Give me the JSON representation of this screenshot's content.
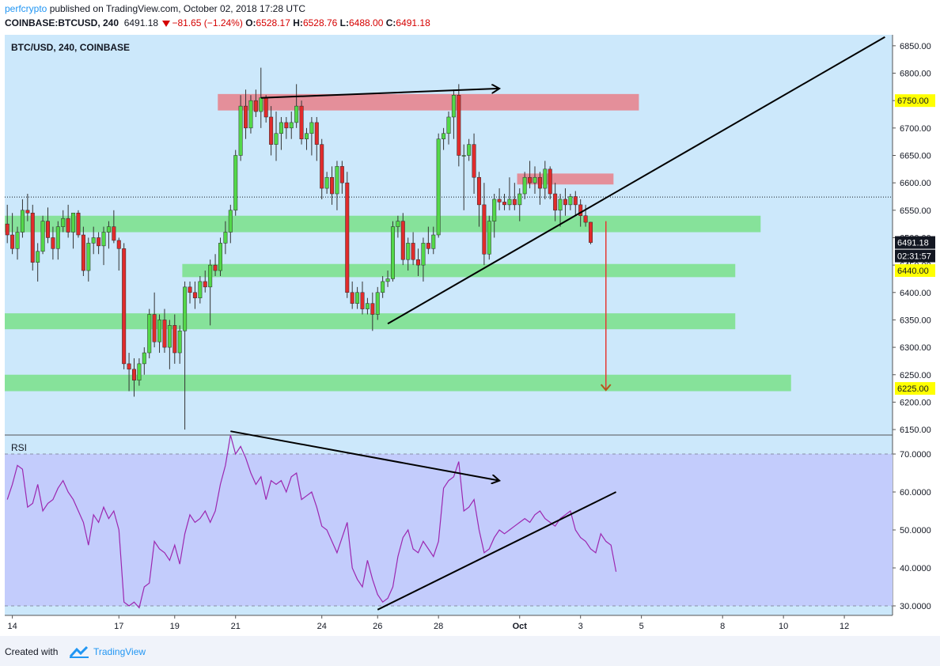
{
  "header": {
    "author": "perfcrypto",
    "published_text": "published on TradingView.com, October 02, 2018 17:28 UTC",
    "symbol": "COINBASE:BTCUSD, 240",
    "last": "6491.18",
    "change": "−81.65 (−1.24%)",
    "open_label": "O:",
    "open": "6528.17",
    "high_label": "H:",
    "high": "6528.76",
    "low_label": "L:",
    "low": "6488.00",
    "close_label": "C:",
    "close": "6491.18"
  },
  "footer": {
    "created_with": "Created with",
    "brand": "TradingView"
  },
  "colors": {
    "background": "#cce8fb",
    "up_candle": "#53d849",
    "down_candle": "#e12b2b",
    "support_zone": "#7ee18f",
    "resistance_zone": "#e7858f",
    "rsi_line": "#9c27b0",
    "rsi_band": "#c3ccfc",
    "target_arrow": "#e53935",
    "trendline": "#000000",
    "price_tag_yellow": "#ffff00"
  },
  "chart_data": [
    {
      "type": "candlestick",
      "title": "BTC/USD, 240, COINBASE",
      "ylim": [
        6140,
        6870
      ],
      "y_ticks": [
        6150,
        6200,
        6250,
        6300,
        6350,
        6400,
        6450,
        6500,
        6550,
        6600,
        6650,
        6700,
        6750,
        6800,
        6850
      ],
      "y_tick_labels": [
        "6150.00",
        "6200.00",
        "6250.00",
        "6300.00",
        "6350.00",
        "6400.00",
        "6450.00",
        "6500.00",
        "6550.00",
        "6600.00",
        "6650.00",
        "6700.00",
        "6750.00",
        "6800.00",
        "6850.00"
      ],
      "x_tick_labels": [
        "14",
        "17",
        "19",
        "21",
        "24",
        "26",
        "28",
        "Oct",
        "3",
        "5",
        "8",
        "10",
        "12"
      ],
      "x_tick_bars": [
        1,
        22,
        33,
        45,
        62,
        73,
        85,
        101,
        113,
        125,
        141,
        153,
        165
      ],
      "n_bars_visible": 175,
      "ohlc": [
        [
          6525,
          6560,
          6490,
          6505
        ],
        [
          6505,
          6545,
          6470,
          6480
        ],
        [
          6480,
          6520,
          6460,
          6510
        ],
        [
          6510,
          6570,
          6500,
          6550
        ],
        [
          6550,
          6580,
          6530,
          6545
        ],
        [
          6545,
          6560,
          6440,
          6455
        ],
        [
          6455,
          6490,
          6420,
          6475
        ],
        [
          6475,
          6540,
          6470,
          6530
        ],
        [
          6530,
          6555,
          6490,
          6500
        ],
        [
          6500,
          6520,
          6460,
          6480
        ],
        [
          6480,
          6530,
          6460,
          6520
        ],
        [
          6520,
          6550,
          6510,
          6535
        ],
        [
          6535,
          6560,
          6500,
          6510
        ],
        [
          6510,
          6540,
          6480,
          6545
        ],
        [
          6545,
          6550,
          6500,
          6505
        ],
        [
          6505,
          6520,
          6430,
          6440
        ],
        [
          6440,
          6500,
          6420,
          6490
        ],
        [
          6490,
          6520,
          6470,
          6500
        ],
        [
          6500,
          6510,
          6470,
          6485
        ],
        [
          6485,
          6520,
          6450,
          6510
        ],
        [
          6510,
          6530,
          6480,
          6520
        ],
        [
          6520,
          6550,
          6490,
          6495
        ],
        [
          6495,
          6500,
          6440,
          6480
        ],
        [
          6480,
          6490,
          6260,
          6270
        ],
        [
          6270,
          6290,
          6220,
          6260
        ],
        [
          6260,
          6280,
          6210,
          6240
        ],
        [
          6240,
          6280,
          6230,
          6270
        ],
        [
          6270,
          6300,
          6250,
          6290
        ],
        [
          6290,
          6370,
          6280,
          6360
        ],
        [
          6360,
          6400,
          6300,
          6310
        ],
        [
          6310,
          6360,
          6290,
          6350
        ],
        [
          6350,
          6370,
          6290,
          6300
        ],
        [
          6300,
          6350,
          6260,
          6340
        ],
        [
          6340,
          6360,
          6270,
          6290
        ],
        [
          6290,
          6340,
          6270,
          6330
        ],
        [
          6330,
          6420,
          6150,
          6410
        ],
        [
          6410,
          6420,
          6380,
          6400
        ],
        [
          6400,
          6420,
          6370,
          6390
        ],
        [
          6390,
          6430,
          6380,
          6420
        ],
        [
          6420,
          6440,
          6400,
          6410
        ],
        [
          6410,
          6460,
          6340,
          6450
        ],
        [
          6450,
          6470,
          6430,
          6440
        ],
        [
          6440,
          6500,
          6430,
          6490
        ],
        [
          6490,
          6530,
          6470,
          6510
        ],
        [
          6510,
          6560,
          6490,
          6550
        ],
        [
          6550,
          6660,
          6540,
          6650
        ],
        [
          6650,
          6760,
          6640,
          6740
        ],
        [
          6740,
          6770,
          6680,
          6700
        ],
        [
          6700,
          6760,
          6690,
          6750
        ],
        [
          6750,
          6770,
          6720,
          6730
        ],
        [
          6730,
          6810,
          6700,
          6755
        ],
        [
          6755,
          6760,
          6710,
          6720
        ],
        [
          6720,
          6740,
          6650,
          6670
        ],
        [
          6670,
          6730,
          6640,
          6690
        ],
        [
          6690,
          6720,
          6660,
          6710
        ],
        [
          6710,
          6720,
          6680,
          6700
        ],
        [
          6700,
          6730,
          6680,
          6710
        ],
        [
          6710,
          6780,
          6700,
          6740
        ],
        [
          6740,
          6750,
          6670,
          6680
        ],
        [
          6680,
          6700,
          6660,
          6690
        ],
        [
          6690,
          6720,
          6650,
          6710
        ],
        [
          6710,
          6720,
          6640,
          6670
        ],
        [
          6670,
          6680,
          6570,
          6590
        ],
        [
          6590,
          6620,
          6580,
          6610
        ],
        [
          6610,
          6630,
          6560,
          6580
        ],
        [
          6580,
          6640,
          6550,
          6630
        ],
        [
          6630,
          6640,
          6580,
          6600
        ],
        [
          6600,
          6620,
          6390,
          6400
        ],
        [
          6400,
          6420,
          6370,
          6380
        ],
        [
          6380,
          6410,
          6370,
          6400
        ],
        [
          6400,
          6420,
          6360,
          6370
        ],
        [
          6370,
          6390,
          6360,
          6380
        ],
        [
          6380,
          6400,
          6330,
          6360
        ],
        [
          6360,
          6410,
          6350,
          6400
        ],
        [
          6400,
          6430,
          6390,
          6420
        ],
        [
          6420,
          6440,
          6410,
          6425
        ],
        [
          6425,
          6530,
          6420,
          6520
        ],
        [
          6520,
          6540,
          6500,
          6530
        ],
        [
          6530,
          6545,
          6450,
          6460
        ],
        [
          6460,
          6500,
          6440,
          6490
        ],
        [
          6490,
          6510,
          6450,
          6460
        ],
        [
          6460,
          6480,
          6430,
          6450
        ],
        [
          6450,
          6500,
          6420,
          6490
        ],
        [
          6490,
          6520,
          6470,
          6480
        ],
        [
          6480,
          6520,
          6470,
          6505
        ],
        [
          6505,
          6690,
          6500,
          6680
        ],
        [
          6680,
          6700,
          6660,
          6690
        ],
        [
          6690,
          6730,
          6670,
          6720
        ],
        [
          6720,
          6770,
          6680,
          6760
        ],
        [
          6760,
          6780,
          6630,
          6650
        ],
        [
          6650,
          6670,
          6550,
          6650
        ],
        [
          6650,
          6680,
          6640,
          6670
        ],
        [
          6670,
          6690,
          6580,
          6610
        ],
        [
          6610,
          6620,
          6520,
          6560
        ],
        [
          6560,
          6600,
          6450,
          6470
        ],
        [
          6470,
          6540,
          6460,
          6530
        ],
        [
          6530,
          6580,
          6500,
          6570
        ],
        [
          6570,
          6590,
          6550,
          6565
        ],
        [
          6565,
          6580,
          6550,
          6560
        ],
        [
          6560,
          6610,
          6550,
          6570
        ],
        [
          6570,
          6600,
          6550,
          6560
        ],
        [
          6560,
          6590,
          6530,
          6580
        ],
        [
          6580,
          6620,
          6570,
          6610
        ],
        [
          6610,
          6640,
          6590,
          6600
        ],
        [
          6600,
          6630,
          6580,
          6610
        ],
        [
          6610,
          6620,
          6560,
          6590
        ],
        [
          6590,
          6640,
          6570,
          6625
        ],
        [
          6625,
          6630,
          6570,
          6580
        ],
        [
          6580,
          6600,
          6530,
          6550
        ],
        [
          6550,
          6580,
          6520,
          6570
        ],
        [
          6570,
          6590,
          6540,
          6560
        ],
        [
          6560,
          6580,
          6550,
          6575
        ],
        [
          6575,
          6585,
          6540,
          6560
        ],
        [
          6560,
          6570,
          6520,
          6540
        ],
        [
          6540,
          6560,
          6520,
          6528
        ],
        [
          6528.17,
          6528.76,
          6488,
          6491.18
        ]
      ],
      "zones": [
        {
          "kind": "resistance",
          "low": 6732,
          "high": 6762,
          "start_bar": 42,
          "end_bar": 125
        },
        {
          "kind": "resistance",
          "low": 6597,
          "high": 6617,
          "start_bar": 101,
          "end_bar": 120
        },
        {
          "kind": "support",
          "low": 6510,
          "high": 6540,
          "start_bar": 0,
          "end_bar": 149
        },
        {
          "kind": "support",
          "low": 6428,
          "high": 6452,
          "start_bar": 35,
          "end_bar": 144
        },
        {
          "kind": "support",
          "low": 6333,
          "high": 6362,
          "start_bar": 0,
          "end_bar": 144
        },
        {
          "kind": "support",
          "low": 6220,
          "high": 6250,
          "start_bar": 0,
          "end_bar": 155
        }
      ],
      "price_labels": [
        {
          "value": 6750,
          "text": "6750.00",
          "style": "yellow"
        },
        {
          "value": 6491.18,
          "text": "6491.18",
          "style": "dark"
        },
        {
          "value": 6440,
          "text": "6440.00",
          "style": "yellow"
        }
      ],
      "countdown": "02:31:57",
      "target_label": {
        "value": 6225,
        "text": "6225.00",
        "style": "yellow"
      },
      "dotted_level": 6574,
      "trendlines": [
        {
          "from": [
            50,
            6755
          ],
          "to": [
            97,
            6772
          ],
          "arrow": true
        },
        {
          "from": [
            75,
            6343
          ],
          "to": [
            173,
            6866
          ],
          "arrow": false
        }
      ],
      "target_arrow": {
        "bar": 118,
        "from": 6530,
        "to": 6222
      }
    },
    {
      "type": "line",
      "title": "RSI",
      "ylim": [
        27.5,
        75
      ],
      "y_ticks": [
        30,
        40,
        50,
        60,
        70
      ],
      "y_tick_labels": [
        "30.0000",
        "40.0000",
        "50.0000",
        "60.0000",
        "70.0000"
      ],
      "band": [
        30,
        70
      ],
      "values": [
        58,
        62,
        67,
        66,
        56,
        57,
        62,
        55,
        57,
        58,
        61,
        63,
        60,
        58,
        55,
        52,
        46,
        54,
        52,
        56,
        53,
        55,
        50,
        31,
        30,
        31,
        29.5,
        35,
        36,
        47,
        45,
        44,
        42,
        46,
        41,
        49,
        54,
        52,
        53,
        55,
        52,
        55,
        62,
        67,
        75,
        70,
        72,
        69,
        65,
        62,
        64,
        58,
        63,
        62,
        63,
        60,
        64,
        65,
        58,
        59,
        60,
        56,
        51,
        50,
        47,
        44,
        48,
        52,
        40,
        37,
        35,
        42,
        37,
        33,
        31,
        32,
        35,
        43,
        48,
        50,
        45,
        44,
        47,
        45,
        43,
        47,
        61,
        63,
        64,
        68,
        55,
        56,
        58,
        50,
        44,
        45,
        48,
        50,
        49,
        50,
        51,
        52,
        53,
        52,
        54,
        55,
        53,
        52,
        51,
        53,
        54,
        55,
        50,
        48,
        47,
        45,
        44,
        49,
        47,
        46,
        39
      ],
      "trendlines": [
        {
          "from": [
            44,
            76
          ],
          "to": [
            97,
            63
          ],
          "arrow": true
        },
        {
          "from": [
            73,
            29
          ],
          "to": [
            120,
            60
          ],
          "arrow": false
        }
      ]
    }
  ]
}
